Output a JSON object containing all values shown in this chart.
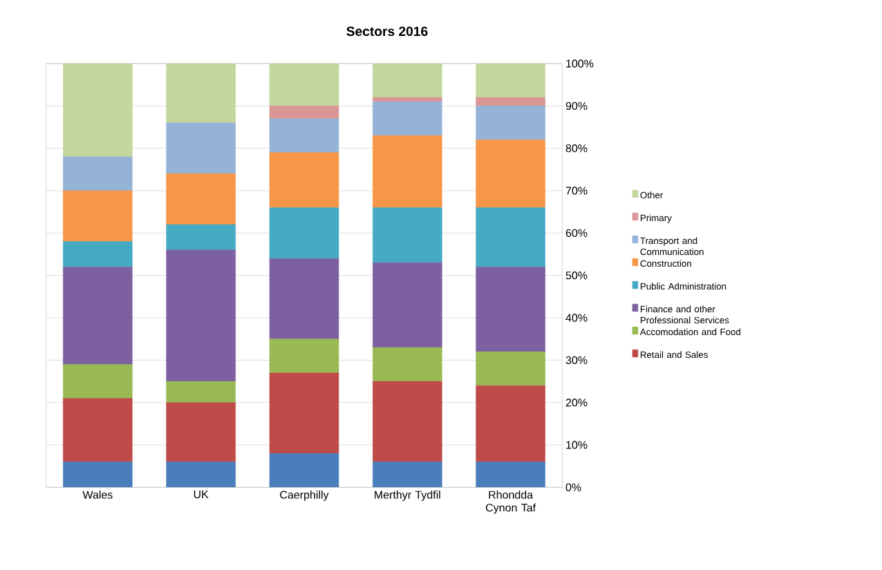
{
  "chart_data": {
    "type": "bar",
    "stacked": true,
    "title": "Sectors 2016",
    "categories": [
      "Wales",
      "UK",
      "Caerphilly",
      "Merthyr Tydfil",
      "Rhondda Cynon Taf"
    ],
    "series": [
      {
        "color": "#4a7ebb",
        "values": [
          6,
          6,
          8,
          6,
          6
        ]
      },
      {
        "name": "Retail and Sales",
        "color": "#be4b48",
        "values": [
          15,
          14,
          19,
          19,
          18
        ]
      },
      {
        "name": "Accomodation and Food",
        "color": "#98b954",
        "values": [
          8,
          5,
          8,
          8,
          8
        ]
      },
      {
        "name": "Finance and other Professional Services",
        "color": "#7d60a0",
        "values": [
          23,
          31,
          19,
          20,
          20
        ]
      },
      {
        "name": "Public Administration",
        "color": "#46aac5",
        "values": [
          6,
          6,
          12,
          13,
          14
        ]
      },
      {
        "name": "Construction",
        "color": "#f79646",
        "values": [
          12,
          12,
          13,
          17,
          16
        ]
      },
      {
        "name": "Transport and Communication",
        "color": "#95b3d7",
        "values": [
          8,
          12,
          8,
          8,
          8
        ]
      },
      {
        "name": "Primary",
        "color": "#d99694",
        "values": [
          0,
          0,
          3,
          1,
          2
        ]
      },
      {
        "name": "Other",
        "color": "#c3d69b",
        "values": [
          22,
          14,
          10,
          8,
          8
        ]
      }
    ],
    "ylim": [
      0,
      100
    ],
    "yticks": [
      {
        "value": 0,
        "label": "0%"
      },
      {
        "value": 10,
        "label": "10%"
      },
      {
        "value": 20,
        "label": "20%"
      },
      {
        "value": 30,
        "label": "30%"
      },
      {
        "value": 40,
        "label": "40%"
      },
      {
        "value": 50,
        "label": "50%"
      },
      {
        "value": 60,
        "label": "60%"
      },
      {
        "value": 70,
        "label": "70%"
      },
      {
        "value": 80,
        "label": "80%"
      },
      {
        "value": 90,
        "label": "90%"
      },
      {
        "value": 100,
        "label": "100%"
      }
    ],
    "grid": "y",
    "legend": "right"
  }
}
